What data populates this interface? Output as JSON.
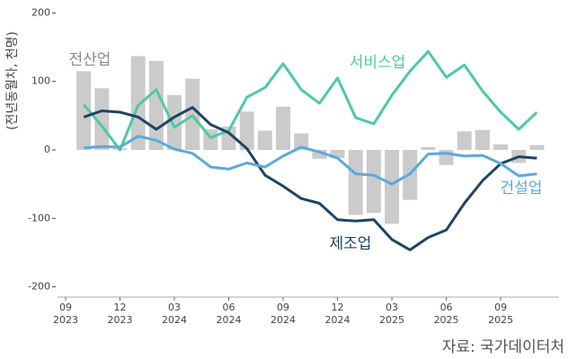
{
  "chart_data": {
    "type": "bar-line",
    "y_label": "(전년동월차, 천명)",
    "source": "자료: 국가데이터처",
    "x": [
      "2023-10",
      "2023-11",
      "2023-12",
      "2024-01",
      "2024-02",
      "2024-03",
      "2024-04",
      "2024-05",
      "2024-06",
      "2024-07",
      "2024-08",
      "2024-09",
      "2024-10",
      "2024-11",
      "2024-12",
      "2025-01",
      "2025-02",
      "2025-03",
      "2025-04",
      "2025-05",
      "2025-06",
      "2025-07",
      "2025-08",
      "2025-09",
      "2025-10",
      "2025-11"
    ],
    "series": [
      {
        "name": "전산업",
        "kind": "bar",
        "color": "#cbcbcb",
        "label_color": "#8a8a8a",
        "values": [
          115,
          90,
          2,
          137,
          130,
          80,
          104,
          30,
          34,
          56,
          28,
          63,
          24,
          -13,
          -12,
          -95,
          -92,
          -108,
          -73,
          4,
          -22,
          27,
          29,
          8,
          -19,
          7
        ]
      },
      {
        "name": "서비스업",
        "kind": "line",
        "color": "#4ec9a5",
        "values": [
          66,
          35,
          0,
          65,
          88,
          33,
          50,
          18,
          28,
          77,
          91,
          126,
          88,
          68,
          105,
          47,
          38,
          80,
          115,
          144,
          106,
          124,
          86,
          55,
          30,
          55
        ]
      },
      {
        "name": "제조업",
        "kind": "line",
        "color": "#1f4464",
        "values": [
          48,
          57,
          55,
          48,
          30,
          48,
          62,
          37,
          25,
          2,
          -37,
          -53,
          -71,
          -78,
          -102,
          -104,
          -102,
          -131,
          -146,
          -128,
          -117,
          -78,
          -45,
          -20,
          -10,
          -12
        ]
      },
      {
        "name": "건설업",
        "kind": "line",
        "color": "#5aaadc",
        "values": [
          3,
          5,
          4,
          20,
          14,
          1,
          -5,
          -25,
          -28,
          -19,
          -25,
          -9,
          4,
          -3,
          -12,
          -35,
          -37,
          -50,
          -35,
          -6,
          -5,
          -9,
          -8,
          -20,
          -38,
          -35
        ]
      }
    ],
    "ylim": [
      -215,
      215
    ],
    "yticks": [
      200,
      100,
      0,
      -100,
      -200
    ],
    "xticks": [
      {
        "value": "2023-09",
        "label": [
          "09",
          "2023"
        ]
      },
      {
        "value": "2023-12",
        "label": [
          "12",
          "2023"
        ]
      },
      {
        "value": "2024-03",
        "label": [
          "03",
          "2024"
        ]
      },
      {
        "value": "2024-06",
        "label": [
          "06",
          "2024"
        ]
      },
      {
        "value": "2024-09",
        "label": [
          "09",
          "2024"
        ]
      },
      {
        "value": "2024-12",
        "label": [
          "12",
          "2024"
        ]
      },
      {
        "value": "2025-03",
        "label": [
          "03",
          "2025"
        ]
      },
      {
        "value": "2025-06",
        "label": [
          "06",
          "2025"
        ]
      },
      {
        "value": "2025-09",
        "label": [
          "09",
          "2025"
        ]
      }
    ],
    "grid": false
  }
}
